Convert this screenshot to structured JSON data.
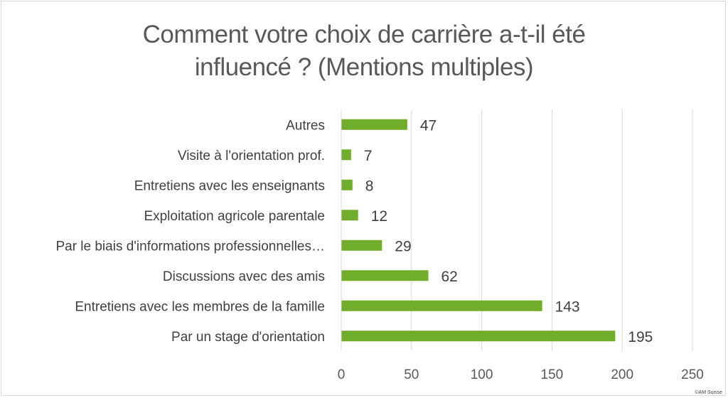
{
  "chart_data": {
    "type": "bar",
    "orientation": "horizontal",
    "title_lines": [
      "Comment votre choix de carrière a-t-il été",
      "influencé ? (Mentions multiples)"
    ],
    "categories": [
      "Autres",
      "Visite à l'orientation prof.",
      "Entretiens avec les enseignants",
      "Exploitation agricole parentale",
      "Par le biais d'informations professionnelles…",
      "Discussions avec des amis",
      "Entretiens avec les membres de la famille",
      "Par un stage d'orientation"
    ],
    "values": [
      47,
      7,
      8,
      12,
      29,
      62,
      143,
      195
    ],
    "xlim": [
      0,
      250
    ],
    "xticks": [
      0,
      50,
      100,
      150,
      200,
      250
    ],
    "grid": true,
    "bar_color": "#70ad2a",
    "data_labels": true
  },
  "credit": "©AM Suisse"
}
